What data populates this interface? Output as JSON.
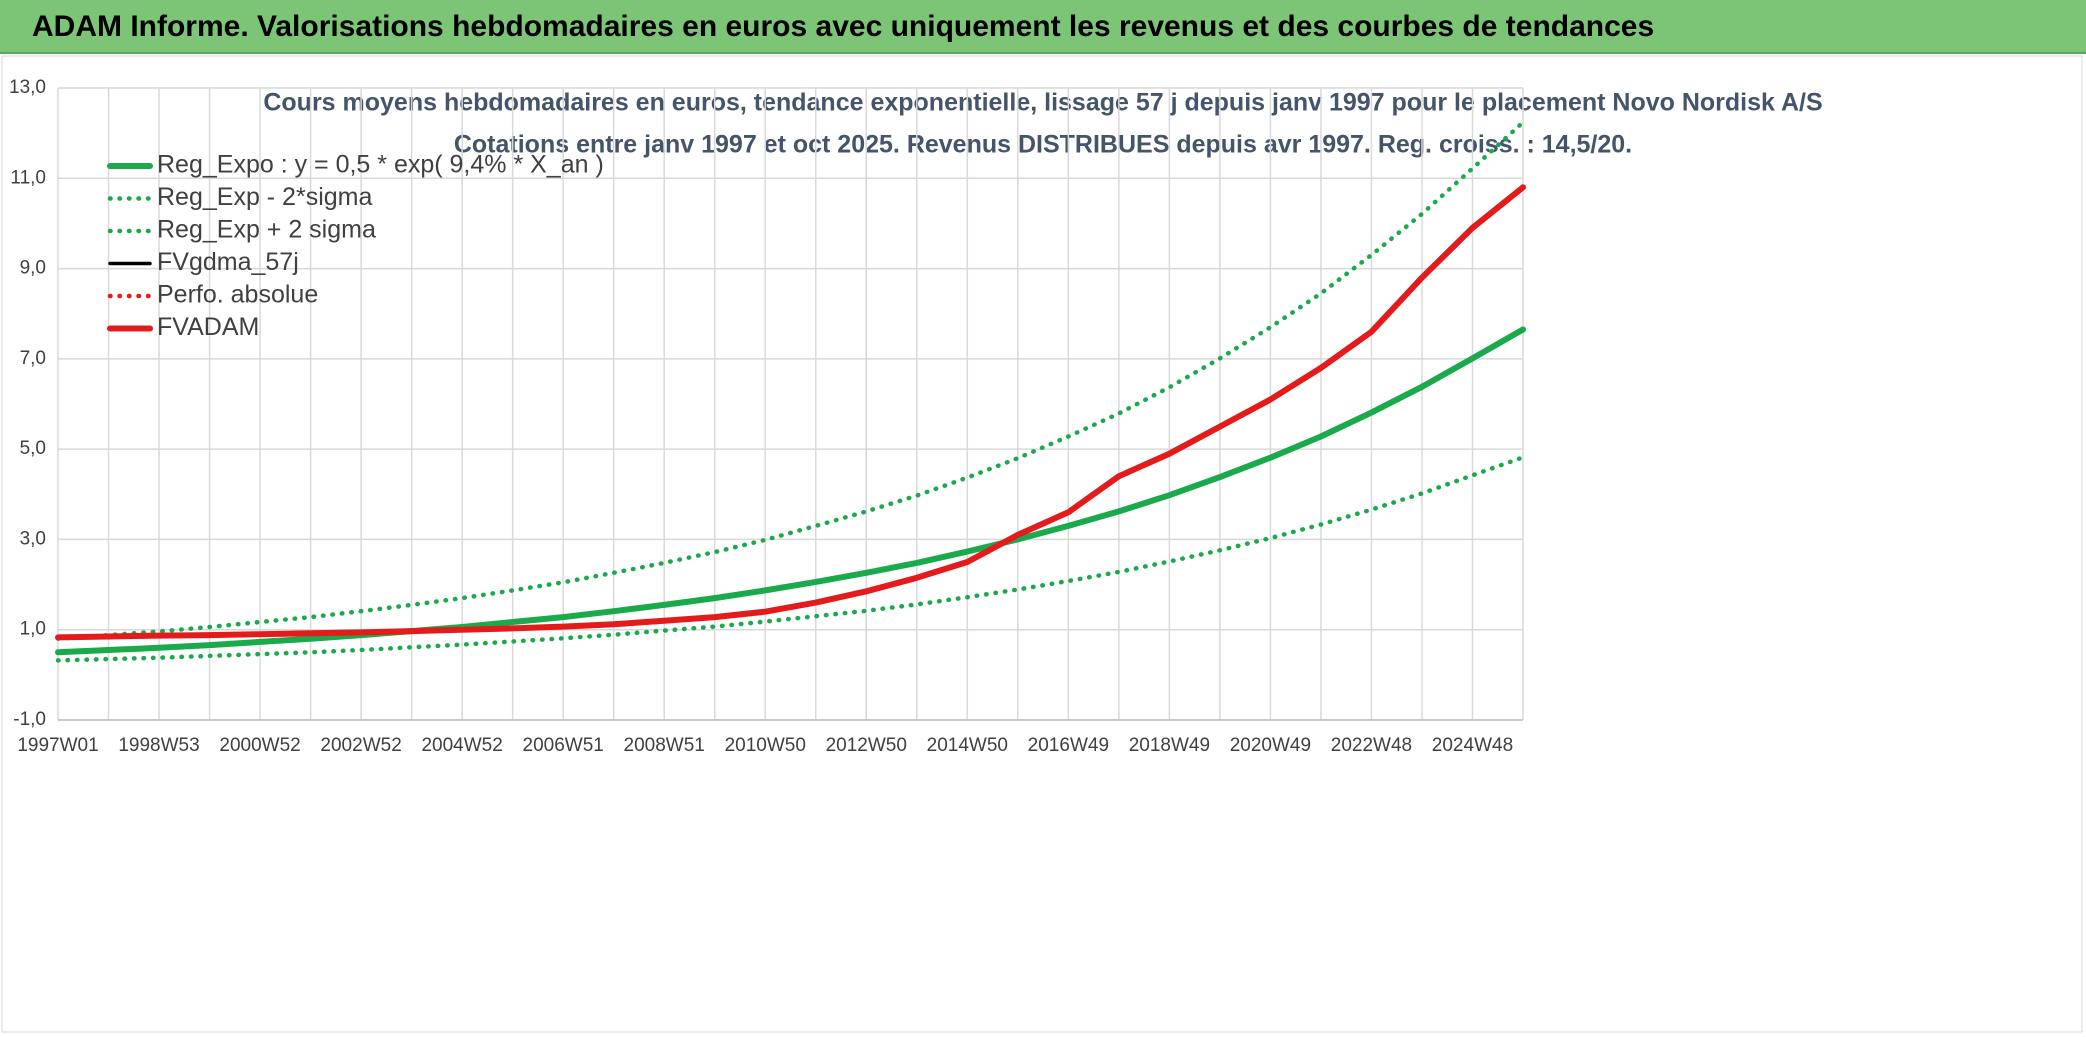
{
  "header": {
    "title": "ADAM Informe. Valorisations hebdomadaires en euros avec uniquement les revenus et des courbes de tendances"
  },
  "chart_data": {
    "type": "line",
    "title": "Cours moyens hebdomadaires en euros, tendance exponentielle, lissage 57 j depuis janv 1997 pour le placement Novo Nordisk A/S",
    "subtitle": "Cotations entre janv 1997 et oct 2025. Revenus DISTRIBUES depuis avr 1997. Reg. croiss. : 14,5/20.",
    "categories": [
      "1997W01",
      null,
      "1998W53",
      null,
      "2000W52",
      null,
      "2002W52",
      null,
      "2004W52",
      null,
      "2006W51",
      null,
      "2008W51",
      null,
      "2010W50",
      null,
      "2012W50",
      null,
      "2014W50",
      null,
      "2016W49",
      null,
      "2018W49",
      null,
      "2020W49",
      null,
      "2022W48",
      null,
      "2024W48",
      null
    ],
    "ylim": [
      -1,
      13
    ],
    "yticks": [
      {
        "value": -1,
        "label": "-1,0"
      },
      {
        "value": 1,
        "label": "1,0"
      },
      {
        "value": 3,
        "label": "3,0"
      },
      {
        "value": 5,
        "label": "5,0"
      },
      {
        "value": 7,
        "label": "7,0"
      },
      {
        "value": 9,
        "label": "9,0"
      },
      {
        "value": 11,
        "label": "11,0"
      },
      {
        "value": 13,
        "label": "13,0"
      }
    ],
    "grid": true,
    "legend": "upper-left",
    "series": [
      {
        "name": "Reg_Expo : y = 0,5 * exp( 9,4% *  X_an )",
        "color": "#1aaa4b",
        "style": "solid",
        "values": [
          0.5,
          0.55,
          0.6,
          0.66,
          0.73,
          0.8,
          0.88,
          0.97,
          1.06,
          1.17,
          1.28,
          1.41,
          1.55,
          1.7,
          1.87,
          2.06,
          2.26,
          2.48,
          2.73,
          3.0,
          3.3,
          3.62,
          3.98,
          4.38,
          4.81,
          5.28,
          5.81,
          6.38,
          7.01,
          7.65
        ]
      },
      {
        "name": "Reg_Exp - 2*sigma",
        "color": "#1aaa4b",
        "style": "dotted",
        "values": [
          0.32,
          0.35,
          0.38,
          0.42,
          0.46,
          0.5,
          0.55,
          0.61,
          0.67,
          0.74,
          0.81,
          0.89,
          0.98,
          1.07,
          1.18,
          1.3,
          1.42,
          1.56,
          1.72,
          1.89,
          2.08,
          2.28,
          2.51,
          2.76,
          3.03,
          3.33,
          3.66,
          4.02,
          4.42,
          4.82
        ]
      },
      {
        "name": "Reg_Exp + 2 sigma",
        "color": "#1aaa4b",
        "style": "dotted",
        "values": [
          0.8,
          0.88,
          0.96,
          1.06,
          1.17,
          1.28,
          1.41,
          1.55,
          1.7,
          1.87,
          2.05,
          2.26,
          2.48,
          2.72,
          2.99,
          3.3,
          3.62,
          3.97,
          4.37,
          4.8,
          5.28,
          5.79,
          6.37,
          7.01,
          7.7,
          8.45,
          9.3,
          10.21,
          11.22,
          12.24
        ]
      },
      {
        "name": "FVgdma_57j",
        "color": "#000000",
        "style": "solid",
        "values": [
          0.83,
          0.85,
          0.87,
          0.88,
          0.9,
          0.92,
          0.94,
          0.97,
          1.0,
          1.03,
          1.07,
          1.12,
          1.2,
          1.28,
          1.4,
          1.6,
          1.85,
          2.15,
          2.5,
          3.1,
          3.6,
          4.4,
          4.9,
          5.5,
          6.1,
          6.8,
          7.6,
          8.8,
          9.9,
          10.8
        ]
      },
      {
        "name": "Perfo. absolue",
        "color": "#e31b1b",
        "style": "dotted",
        "values": [
          0.83,
          0.85,
          0.87,
          0.88,
          0.9,
          0.92,
          0.94,
          0.97,
          1.0,
          1.03,
          1.07,
          1.12,
          1.2,
          1.28,
          1.4,
          1.6,
          1.85,
          2.15,
          2.5,
          3.1,
          3.6,
          4.4,
          4.9,
          5.5,
          6.1,
          6.8,
          7.6,
          8.8,
          9.9,
          10.8
        ]
      },
      {
        "name": "FVADAM",
        "color": "#e31b1b",
        "style": "solid",
        "values": [
          0.83,
          0.85,
          0.87,
          0.88,
          0.9,
          0.92,
          0.94,
          0.97,
          1.0,
          1.03,
          1.07,
          1.12,
          1.2,
          1.28,
          1.4,
          1.6,
          1.85,
          2.15,
          2.5,
          3.1,
          3.6,
          4.4,
          4.9,
          5.5,
          6.1,
          6.8,
          7.6,
          8.8,
          9.9,
          10.8
        ]
      }
    ]
  }
}
